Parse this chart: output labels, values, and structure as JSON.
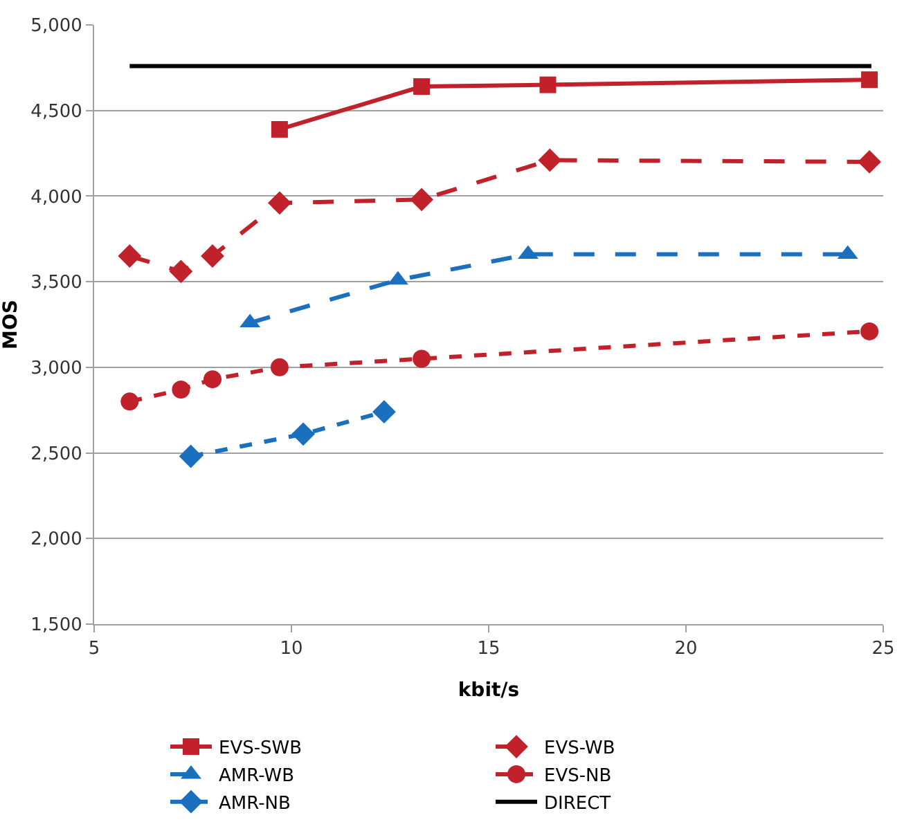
{
  "chart_data": {
    "type": "line",
    "xlabel": "kbit/s",
    "ylabel": "MOS",
    "xlim": [
      5,
      25
    ],
    "xticks": [
      5,
      10,
      15,
      20,
      25
    ],
    "ylim": [
      1500,
      5000
    ],
    "yticks": [
      {
        "value": 1500,
        "label": "1,500"
      },
      {
        "value": 2000,
        "label": "2,000"
      },
      {
        "value": 2500,
        "label": "2,500"
      },
      {
        "value": 3000,
        "label": "3,000"
      },
      {
        "value": 3500,
        "label": "3,500"
      },
      {
        "value": 4000,
        "label": "4,000"
      },
      {
        "value": 4500,
        "label": "4,500"
      },
      {
        "value": 5000,
        "label": "5,000"
      }
    ],
    "grid": "y",
    "legend": "bottom",
    "series": [
      {
        "name": "EVS-SWB",
        "color": "#c0212b",
        "marker": "square",
        "line_style": "solid",
        "x": [
          9.7,
          13.3,
          16.5,
          24.65
        ],
        "values": [
          4390,
          4640,
          4650,
          4680
        ]
      },
      {
        "name": "EVS-WB",
        "color": "#c0212b",
        "marker": "diamond",
        "line_style": "dashed",
        "x": [
          5.9,
          7.2,
          8.0,
          9.7,
          13.3,
          16.55,
          24.65
        ],
        "values": [
          3650,
          3560,
          3650,
          3960,
          3980,
          4210,
          4200
        ]
      },
      {
        "name": "AMR-WB",
        "color": "#1a6fbf",
        "marker": "triangle",
        "line_style": "dashed",
        "x": [
          8.95,
          12.7,
          16.0,
          24.1
        ],
        "values": [
          3260,
          3510,
          3660,
          3660
        ]
      },
      {
        "name": "EVS-NB",
        "color": "#c0212b",
        "marker": "circle",
        "line_style": "dotted",
        "x": [
          5.9,
          7.2,
          8.0,
          9.7,
          13.3,
          24.65
        ],
        "values": [
          2800,
          2870,
          2930,
          3000,
          3050,
          3210
        ]
      },
      {
        "name": "AMR-NB",
        "color": "#1a6fbf",
        "marker": "diamond",
        "line_style": "dotted",
        "x": [
          7.45,
          10.3,
          12.35
        ],
        "values": [
          2480,
          2610,
          2740
        ]
      },
      {
        "name": "DIRECT",
        "color": "#000000",
        "marker": "none",
        "line_style": "solid",
        "x": [
          5.9,
          24.7
        ],
        "values": [
          4760,
          4760
        ]
      }
    ]
  }
}
